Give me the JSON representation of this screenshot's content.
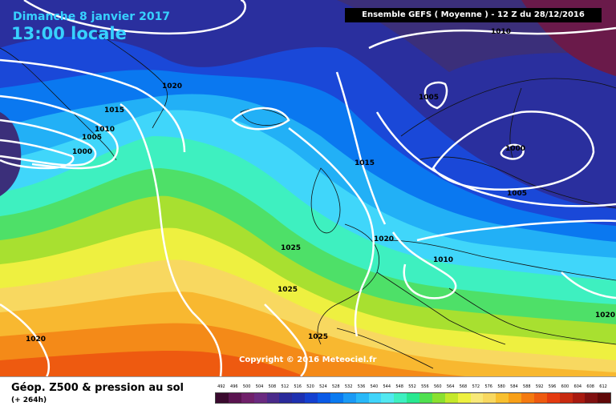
{
  "header": {
    "date": "Dimanche 8 janvier 2017",
    "time": "13:00 locale",
    "model_info": "Ensemble GEFS  ( Moyenne )  -  12 Z du 28/12/2016"
  },
  "copyright": "Copyright © 2016 Meteociel.fr",
  "footer": {
    "title": "Géop. Z500 & pression au sol",
    "subtitle": "(+ 264h)"
  },
  "legend": {
    "values": [
      "492",
      "496",
      "500",
      "504",
      "508",
      "512",
      "516",
      "520",
      "524",
      "528",
      "532",
      "536",
      "540",
      "544",
      "548",
      "552",
      "556",
      "560",
      "564",
      "568",
      "572",
      "576",
      "580",
      "584",
      "588",
      "592",
      "596",
      "600",
      "604",
      "608",
      "612"
    ],
    "colors": [
      "#3a0a2e",
      "#5a1450",
      "#70206a",
      "#6a2a80",
      "#4a2a8a",
      "#2a2a9a",
      "#1e30b0",
      "#1440d0",
      "#0a5ae6",
      "#0a7af0",
      "#1a9af5",
      "#28b8f8",
      "#40d4fa",
      "#52e8f0",
      "#3ef0c0",
      "#28e890",
      "#50e050",
      "#8ae030",
      "#c4e82a",
      "#eef040",
      "#f8e878",
      "#f8d860",
      "#f8c030",
      "#f8a018",
      "#f47a10",
      "#ee5a10",
      "#e43a10",
      "#c82a10",
      "#a81a10",
      "#801010",
      "#600808"
    ]
  },
  "isobars": [
    {
      "label": "1020",
      "marker": "isobar-label-1020-greenland"
    },
    {
      "label": "1015",
      "marker": "isobar-label-1015-west"
    },
    {
      "label": "1010",
      "marker": "isobar-label-1010-west"
    },
    {
      "label": "1005",
      "marker": "isobar-label-1005-west"
    },
    {
      "label": "1000",
      "marker": "isobar-label-1000-west"
    },
    {
      "label": "1010",
      "marker": "isobar-label-1010-top"
    },
    {
      "label": "1005",
      "marker": "isobar-label-1005-norway"
    },
    {
      "label": "1000",
      "marker": "isobar-label-1000-scandinavia"
    },
    {
      "label": "1005",
      "marker": "isobar-label-1005-baltic"
    },
    {
      "label": "1015",
      "marker": "isobar-label-1015-britain"
    },
    {
      "label": "1020",
      "marker": "isobar-label-1020-france"
    },
    {
      "label": "1010",
      "marker": "isobar-label-1010-balkans"
    },
    {
      "label": "1020",
      "marker": "isobar-label-1020-east"
    },
    {
      "label": "1025",
      "marker": "isobar-label-1025-atlantic-north"
    },
    {
      "label": "1025",
      "marker": "isobar-label-1025-atlantic-mid"
    },
    {
      "label": "1025",
      "marker": "isobar-label-1025-azores"
    },
    {
      "label": "1020",
      "marker": "isobar-label-1020-southwest"
    }
  ]
}
